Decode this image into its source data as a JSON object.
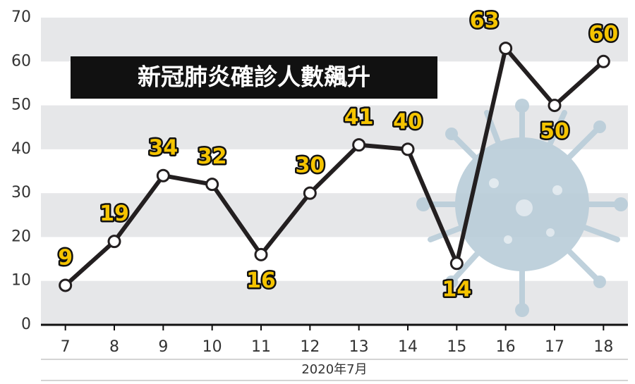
{
  "chart_data": {
    "type": "line",
    "title": "新冠肺炎確診人數飆升",
    "x_label": "2020年7月",
    "categories": [
      "7",
      "8",
      "9",
      "10",
      "11",
      "12",
      "13",
      "14",
      "15",
      "16",
      "17",
      "18"
    ],
    "values": [
      9,
      19,
      34,
      32,
      16,
      30,
      41,
      40,
      14,
      63,
      50,
      60
    ],
    "ylim": [
      0,
      70
    ],
    "yticks": [
      0,
      10,
      20,
      30,
      40,
      50,
      60,
      70
    ],
    "color": "#231f20",
    "label_color": "#f5c400",
    "grid": true
  }
}
